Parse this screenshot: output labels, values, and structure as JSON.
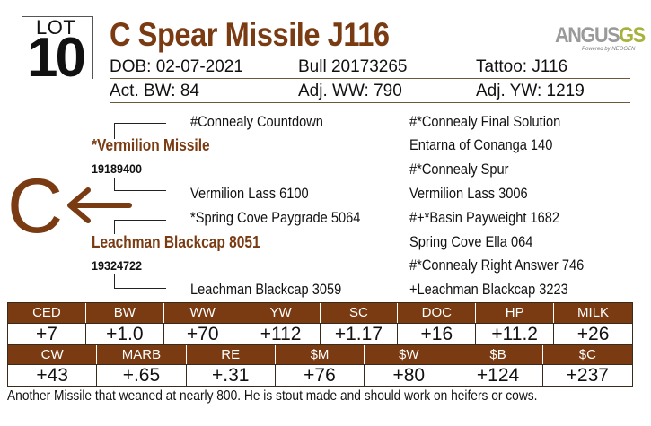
{
  "lot": {
    "label": "LOT",
    "number": "10"
  },
  "animal": {
    "name": "C Spear Missile J116",
    "dob": "DOB:  02-07-2021",
    "sex_reg": "Bull    20173265",
    "tattoo": "Tattoo:  J116",
    "act_bw": "Act. BW: 84",
    "adj_ww": "Adj. WW: 790",
    "adj_yw": "Adj. YW: 1219"
  },
  "logo": {
    "word": "ANGUS",
    "gs": "GS",
    "sub": "Powered by NEOGEN"
  },
  "pedigree": {
    "sire": {
      "name": "*Vermilion Missile",
      "reg": "19189400"
    },
    "sire_sire": "#Connealy Countdown",
    "sire_dam": "Vermilion Lass 6100",
    "dam": {
      "name": "Leachman Blackcap 8051",
      "reg": "19324722"
    },
    "dam_sire": "*Spring Cove Paygrade 5064",
    "dam_dam": "Leachman Blackcap 3059",
    "ss_sire": "#*Connealy Final Solution",
    "ss_dam": "Entarna of Conanga 140",
    "sd_sire": "#*Connealy Spur",
    "sd_dam": "Vermilion Lass 3006",
    "ds_sire": "#+*Basin Payweight 1682",
    "ds_dam": "Spring Cove Ella 064",
    "dd_sire": "#*Connealy Right Answer 746",
    "dd_dam": "+Leachman Blackcap 3223",
    "brand_letter": "C"
  },
  "epd": {
    "row1": [
      {
        "label": "CED",
        "value": "+7"
      },
      {
        "label": "BW",
        "value": "+1.0"
      },
      {
        "label": "WW",
        "value": "+70"
      },
      {
        "label": "YW",
        "value": "+112"
      },
      {
        "label": "SC",
        "value": "+1.17"
      },
      {
        "label": "DOC",
        "value": "+16"
      },
      {
        "label": "HP",
        "value": "+11.2"
      },
      {
        "label": "MILK",
        "value": "+26"
      }
    ],
    "row2": [
      {
        "label": "CW",
        "value": "+43"
      },
      {
        "label": "MARB",
        "value": "+.65"
      },
      {
        "label": "RE",
        "value": "+.31"
      },
      {
        "label": "$M",
        "value": "+76"
      },
      {
        "label": "$W",
        "value": "+80"
      },
      {
        "label": "$B",
        "value": "+124"
      },
      {
        "label": "$C",
        "value": "+237"
      }
    ]
  },
  "comment": "Another Missile that weaned at nearly 800.  He is stout made and should work on heifers or cows.",
  "colors": {
    "accent": "#7a3b12",
    "logo_gray": "#9a9a9a",
    "logo_green": "#a6b23b"
  }
}
